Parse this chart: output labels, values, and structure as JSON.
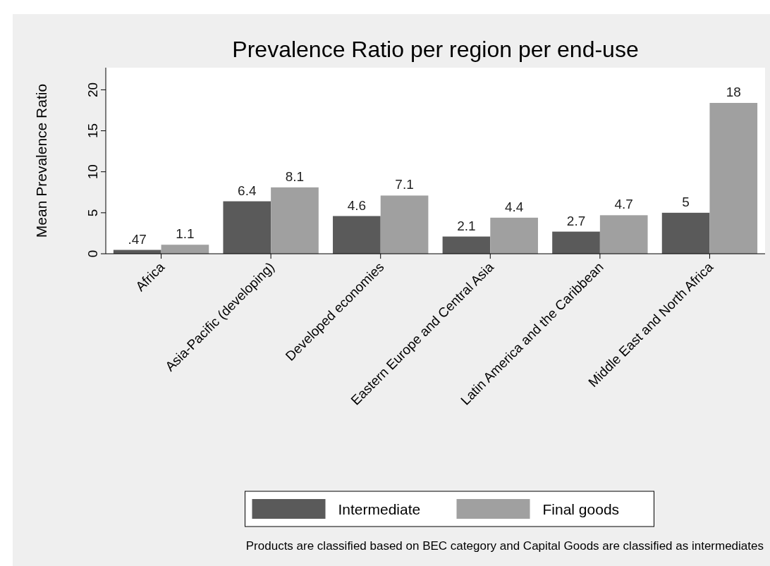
{
  "chart_data": {
    "type": "bar",
    "title": "Prevalence Ratio per region per end-use",
    "ylabel": "Mean Prevalence Ratio",
    "categories": [
      "Africa",
      "Asia-Pacific (developing)",
      "Developed economies",
      "Eastern Europe and Central Asia",
      "Latin America and the Caribbean",
      "Middle East and North Africa"
    ],
    "series": [
      {
        "name": "Intermediate",
        "color": "#5a5a5a",
        "values": [
          0.47,
          6.4,
          4.6,
          2.1,
          2.7,
          5
        ],
        "value_labels": [
          ".47",
          "6.4",
          "4.6",
          "2.1",
          "2.7",
          "5"
        ]
      },
      {
        "name": "Final goods",
        "color": "#a0a0a0",
        "values": [
          1.1,
          8.1,
          7.1,
          4.4,
          4.7,
          18.4
        ],
        "value_labels": [
          "1.1",
          "8.1",
          "7.1",
          "4.4",
          "4.7",
          "18"
        ]
      }
    ],
    "ylim": [
      0,
      22.7
    ],
    "yticks": [
      0,
      5,
      10,
      15,
      20
    ],
    "grid": false,
    "legend": "bottom",
    "annotations": [
      "Products are classified based on BEC category and Capital Goods are classified as intermediates"
    ]
  }
}
